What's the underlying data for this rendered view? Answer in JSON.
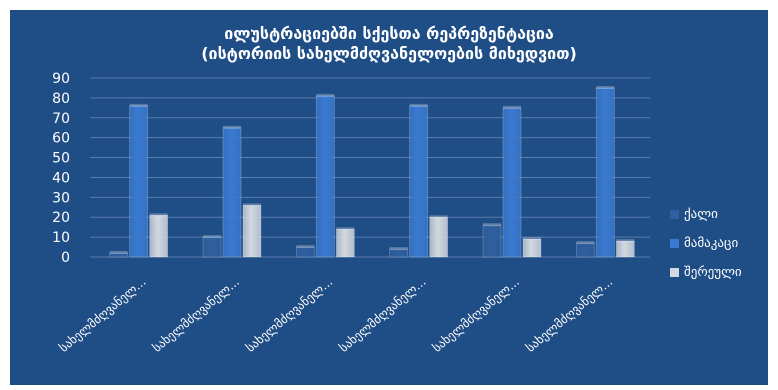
{
  "chart_data": {
    "type": "bar",
    "title_line1": "ილუსტრაციებში სქესთა რეპრეზენტაცია",
    "title_line2": "(ისტორიის სახელმძღვანელოების მიხედვით)",
    "categories": [
      "სახელმძღვანელ...",
      "სახელმძღვანელ...",
      "სახელმძღვანელ...",
      "სახელმძღვანელ...",
      "სახელმძღვანელ...",
      "სახელმძღვანელ..."
    ],
    "series": [
      {
        "name": "ქალი",
        "values": [
          2,
          10,
          5,
          4,
          16,
          7
        ],
        "color": "#2f5f9e"
      },
      {
        "name": "მამაკაცი",
        "values": [
          76,
          65,
          81,
          76,
          75,
          85
        ],
        "color": "#3a7ad0"
      },
      {
        "name": "შერეული",
        "values": [
          21,
          26,
          14,
          20,
          9,
          8
        ],
        "color": "#d3d8e0"
      }
    ],
    "ylim": [
      0,
      90
    ],
    "yticks": [
      0,
      10,
      20,
      30,
      40,
      50,
      60,
      70,
      80,
      90
    ],
    "grid": true,
    "legend_position": "right"
  }
}
